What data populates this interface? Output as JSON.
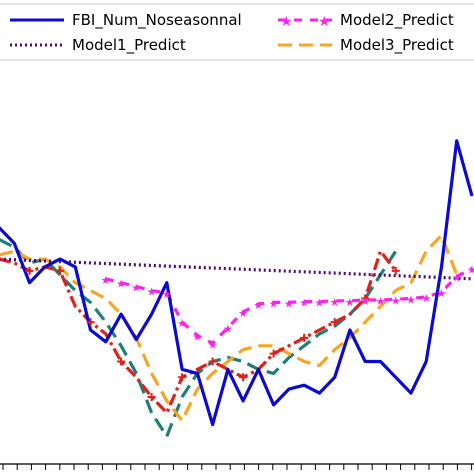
{
  "legend": [
    {
      "label": "FBI_Num_Noseasonnal",
      "color": "#0a0ad0",
      "dash": "none",
      "marker": "none"
    },
    {
      "label": "Model2_Predict",
      "color": "#ff22ee",
      "dash": "8 8",
      "marker": "star"
    },
    {
      "label": "Model1_Predict",
      "color": "#4b0a78",
      "dash": "2 3",
      "marker": "none"
    },
    {
      "label": "Model3_Predict",
      "color": "#f5a623",
      "dash": "14 7",
      "marker": "none"
    }
  ],
  "chart_data": {
    "type": "line",
    "title": "",
    "xlabel": "",
    "ylabel": "",
    "grid": false,
    "legend_placement": "top",
    "series": [
      {
        "name": "FBI_Num_Noseasonnal",
        "color": "#0a0ad0",
        "values": [
          [
            0,
            24.0
          ],
          [
            1,
            22.0
          ],
          [
            2,
            17.0
          ],
          [
            3,
            19.0
          ],
          [
            4,
            20.0
          ],
          [
            5,
            19.0
          ],
          [
            6,
            11.0
          ],
          [
            7,
            9.5
          ],
          [
            8,
            13.0
          ],
          [
            9,
            9.8
          ],
          [
            10,
            13.0
          ],
          [
            11,
            17.0
          ],
          [
            12,
            6.0
          ],
          [
            13,
            5.5
          ],
          [
            14,
            -1.0
          ],
          [
            15,
            6.0
          ],
          [
            16,
            2.0
          ],
          [
            17,
            6.0
          ],
          [
            18,
            1.5
          ],
          [
            19,
            3.5
          ],
          [
            20,
            4.0
          ],
          [
            21,
            3.0
          ],
          [
            22,
            5.0
          ],
          [
            23,
            11.0
          ],
          [
            24,
            7.0
          ],
          [
            25,
            7.0
          ],
          [
            26,
            5.0
          ],
          [
            27,
            3.0
          ],
          [
            28,
            7.0
          ],
          [
            29,
            19.0
          ],
          [
            30,
            35.0
          ],
          [
            31,
            28.0
          ]
        ]
      },
      {
        "name": "Model1_Predict",
        "color": "#4b0a78",
        "values": [
          [
            0,
            20.0
          ],
          [
            31,
            17.5
          ]
        ]
      },
      {
        "name": "Model2_Predict",
        "color": "#ff22ee",
        "values": [
          [
            7,
            17.5
          ],
          [
            8,
            17.0
          ],
          [
            9,
            16.5
          ],
          [
            10,
            16.0
          ],
          [
            11,
            15.7
          ],
          [
            12,
            12.0
          ],
          [
            13,
            10.3
          ],
          [
            14,
            9.3
          ],
          [
            15,
            11.3
          ],
          [
            16,
            13.3
          ],
          [
            17,
            14.3
          ],
          [
            18,
            14.5
          ],
          [
            19,
            14.5
          ],
          [
            20,
            14.6
          ],
          [
            21,
            14.6
          ],
          [
            22,
            14.7
          ],
          [
            23,
            14.7
          ],
          [
            24,
            14.8
          ],
          [
            25,
            14.8
          ],
          [
            26,
            14.9
          ],
          [
            27,
            15.0
          ],
          [
            28,
            15.2
          ],
          [
            29,
            15.8
          ],
          [
            30,
            17.8
          ],
          [
            31,
            18.8
          ]
        ]
      },
      {
        "name": "Model3_Predict",
        "color": "#f5a623",
        "values": [
          [
            0,
            20.5
          ],
          [
            1,
            21.0
          ],
          [
            2,
            20.0
          ],
          [
            3,
            20.0
          ],
          [
            4,
            19.0
          ],
          [
            5,
            17.0
          ],
          [
            6,
            16.0
          ],
          [
            7,
            15.0
          ],
          [
            8,
            13.0
          ],
          [
            9,
            10.0
          ],
          [
            10,
            5.5
          ],
          [
            11,
            2.0
          ],
          [
            12,
            -0.5
          ],
          [
            13,
            3.5
          ],
          [
            14,
            5.5
          ],
          [
            15,
            7.0
          ],
          [
            16,
            8.5
          ],
          [
            17,
            9.0
          ],
          [
            18,
            9.0
          ],
          [
            19,
            8.0
          ],
          [
            20,
            7.0
          ],
          [
            21,
            6.5
          ],
          [
            22,
            8.5
          ],
          [
            23,
            10.0
          ],
          [
            24,
            12.0
          ],
          [
            25,
            14.0
          ],
          [
            26,
            16.0
          ],
          [
            27,
            17.0
          ],
          [
            28,
            21.0
          ],
          [
            29,
            23.0
          ],
          [
            30,
            18.0
          ]
        ]
      },
      {
        "name": "",
        "color": "#1f7f78",
        "values": [
          [
            0,
            22.5
          ],
          [
            1,
            21.5
          ],
          [
            2,
            19.5
          ],
          [
            3,
            20.0
          ],
          [
            4,
            18.0
          ],
          [
            5,
            16.0
          ],
          [
            6,
            14.5
          ],
          [
            7,
            12.0
          ],
          [
            8,
            9.0
          ],
          [
            9,
            5.5
          ],
          [
            10,
            0.5
          ],
          [
            11,
            -2.5
          ],
          [
            12,
            2.5
          ],
          [
            13,
            5.5
          ],
          [
            14,
            7.0
          ],
          [
            15,
            7.5
          ],
          [
            16,
            7.0
          ],
          [
            17,
            6.0
          ],
          [
            18,
            5.5
          ],
          [
            19,
            7.5
          ],
          [
            20,
            9.0
          ],
          [
            21,
            10.5
          ],
          [
            22,
            11.5
          ],
          [
            23,
            13.0
          ],
          [
            24,
            15.0
          ],
          [
            25,
            18.0
          ],
          [
            26,
            21.0
          ]
        ]
      },
      {
        "name": "",
        "color": "#e0201a",
        "values": [
          [
            0,
            20.0
          ],
          [
            1,
            19.5
          ],
          [
            2,
            18.5
          ],
          [
            3,
            19.0
          ],
          [
            4,
            18.5
          ],
          [
            5,
            14.0
          ],
          [
            6,
            12.0
          ],
          [
            7,
            10.5
          ],
          [
            8,
            7.0
          ],
          [
            9,
            5.0
          ],
          [
            10,
            2.5
          ],
          [
            11,
            0.5
          ],
          [
            12,
            5.0
          ],
          [
            13,
            6.0
          ],
          [
            14,
            7.0
          ],
          [
            15,
            6.0
          ],
          [
            16,
            5.0
          ],
          [
            17,
            6.0
          ],
          [
            18,
            8.0
          ],
          [
            19,
            9.0
          ],
          [
            20,
            10.0
          ],
          [
            21,
            11.0
          ],
          [
            22,
            12.0
          ],
          [
            23,
            13.0
          ],
          [
            24,
            15.0
          ],
          [
            25,
            21.0
          ],
          [
            26,
            18.5
          ]
        ]
      }
    ],
    "xlim": [
      0,
      31
    ],
    "ylim": [
      -6,
      45
    ]
  }
}
